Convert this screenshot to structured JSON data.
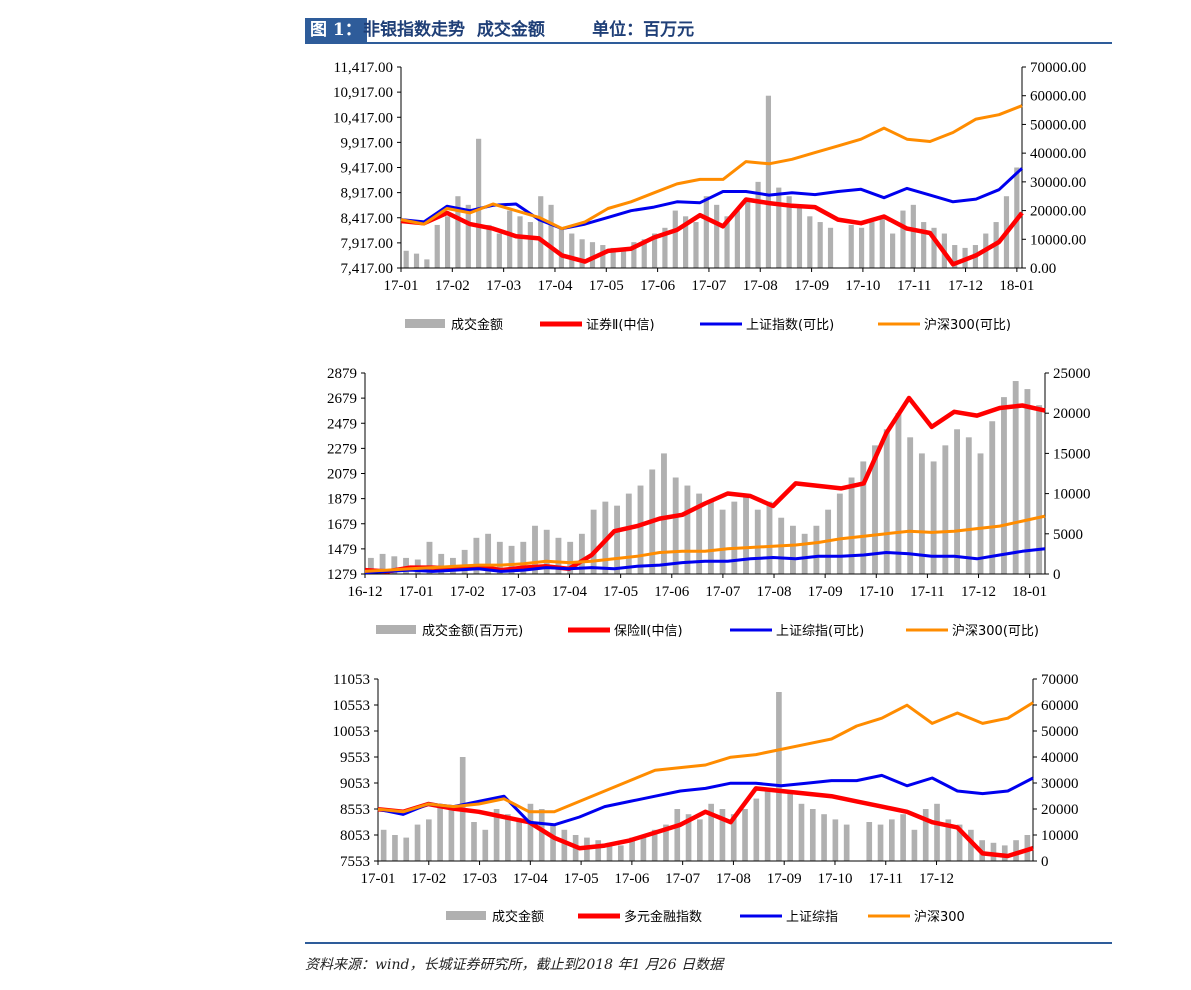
{
  "header": {
    "label": "图 1：",
    "title": "非银指数走势  成交金额        单位：百万元"
  },
  "footer": "资料来源：wind，长城证券研究所，截止到2018 年1 月26 日数据",
  "colors": {
    "bar": "#b0b0b0",
    "red": "#ff0000",
    "blue": "#0000ee",
    "orange": "#ff8c00"
  },
  "chart_data": [
    {
      "type": "line+bar",
      "title": "证券Ⅱ",
      "left_ylim": [
        7417,
        11917
      ],
      "left_ticks": [
        "7,417.00",
        "7,917.00",
        "8,417.00",
        "8,917.00",
        "9,417.00",
        "9,917.00",
        "10,417.00",
        "10,917.00",
        "11,417.00"
      ],
      "right_ylim": [
        0,
        70000
      ],
      "right_ticks": [
        "0.00",
        "10000.00",
        "20000.00",
        "30000.00",
        "40000.00",
        "50000.00",
        "60000.00",
        "70000.00"
      ],
      "x_ticks": [
        "17-01",
        "17-02",
        "17-03",
        "17-04",
        "17-05",
        "17-06",
        "17-07",
        "17-08",
        "17-09",
        "17-10",
        "17-11",
        "17-12",
        "18-01"
      ],
      "x_end": 12.1,
      "legend": [
        "成交金额",
        "证券Ⅱ(中信)",
        "上证指数(可比)",
        "沪深300(可比)"
      ],
      "bars": [
        6000,
        5000,
        3000,
        15000,
        18000,
        25000,
        22000,
        45000,
        15000,
        12000,
        20000,
        18000,
        16000,
        25000,
        22000,
        14000,
        12000,
        10000,
        9000,
        8000,
        7000,
        6000,
        9000,
        10000,
        12000,
        14000,
        20000,
        18000,
        16000,
        25000,
        22000,
        18000,
        20000,
        24000,
        30000,
        60000,
        28000,
        25000,
        22000,
        18000,
        16000,
        14000,
        0,
        15000,
        14000,
        16000,
        18000,
        12000,
        20000,
        22000,
        16000,
        14000,
        12000,
        8000,
        7000,
        8000,
        12000,
        16000,
        25000,
        35000
      ],
      "series": [
        {
          "name": "证券Ⅱ(中信)",
          "values": [
            8470,
            8420,
            8650,
            8400,
            8300,
            8130,
            8080,
            7700,
            7560,
            7800,
            7850,
            8100,
            8270,
            8600,
            8350,
            8950,
            8870,
            8810,
            8780,
            8500,
            8420,
            8570,
            8300,
            8200,
            7500,
            7700,
            8000,
            8650
          ]
        },
        {
          "name": "上证指数(可比)",
          "values": [
            8500,
            8450,
            8800,
            8700,
            8820,
            8850,
            8500,
            8300,
            8400,
            8550,
            8700,
            8780,
            8900,
            8880,
            9130,
            9130,
            9050,
            9100,
            9060,
            9130,
            9180,
            8990,
            9200,
            9050,
            8900,
            8960,
            9170,
            9650
          ]
        },
        {
          "name": "沪深300(可比)",
          "values": [
            8500,
            8400,
            8750,
            8650,
            8850,
            8700,
            8550,
            8300,
            8450,
            8750,
            8900,
            9100,
            9300,
            9400,
            9400,
            9800,
            9750,
            9850,
            10000,
            10150,
            10300,
            10550,
            10300,
            10250,
            10450,
            10750,
            10850,
            11050
          ]
        }
      ]
    },
    {
      "type": "line+bar",
      "title": "保险Ⅱ",
      "left_ylim": [
        1279,
        2879
      ],
      "left_ticks": [
        "1279",
        "1479",
        "1679",
        "1879",
        "2079",
        "2279",
        "2479",
        "2679",
        "2879"
      ],
      "right_ylim": [
        0,
        25000
      ],
      "right_ticks": [
        "0",
        "5000",
        "10000",
        "15000",
        "20000",
        "25000"
      ],
      "x_ticks": [
        "16-12",
        "17-01",
        "17-02",
        "17-03",
        "17-04",
        "17-05",
        "17-06",
        "17-07",
        "17-08",
        "17-09",
        "17-10",
        "17-11",
        "17-12",
        "18-01"
      ],
      "x_end": 13.3,
      "legend": [
        "成交金额(百万元)",
        "保险Ⅱ(中信)",
        "上证综指(可比)",
        "沪深300(可比)"
      ],
      "bars": [
        2000,
        2500,
        2200,
        2000,
        1800,
        4000,
        2500,
        2000,
        3000,
        4500,
        5000,
        4000,
        3500,
        4000,
        6000,
        5500,
        4500,
        4000,
        5000,
        8000,
        9000,
        8500,
        10000,
        11000,
        13000,
        15000,
        12000,
        11000,
        10000,
        9000,
        8000,
        9000,
        10000,
        8000,
        9000,
        7000,
        6000,
        5000,
        6000,
        8000,
        10000,
        12000,
        14000,
        16000,
        18000,
        20000,
        17000,
        15000,
        14000,
        16000,
        18000,
        17000,
        15000,
        19000,
        22000,
        24000,
        23000,
        21000
      ],
      "series": [
        {
          "name": "保险Ⅱ(中信)",
          "values": [
            1310,
            1300,
            1330,
            1330,
            1320,
            1340,
            1310,
            1330,
            1340,
            1320,
            1430,
            1620,
            1660,
            1720,
            1750,
            1840,
            1920,
            1900,
            1820,
            2000,
            1980,
            1960,
            2000,
            2400,
            2680,
            2450,
            2570,
            2540,
            2600,
            2620,
            2580
          ]
        },
        {
          "name": "上证综指(可比)",
          "values": [
            1290,
            1300,
            1310,
            1300,
            1310,
            1320,
            1300,
            1310,
            1330,
            1320,
            1330,
            1320,
            1340,
            1350,
            1370,
            1380,
            1380,
            1400,
            1410,
            1400,
            1420,
            1420,
            1430,
            1450,
            1440,
            1420,
            1420,
            1400,
            1430,
            1460,
            1480
          ]
        },
        {
          "name": "沪深300(可比)",
          "values": [
            1300,
            1310,
            1320,
            1330,
            1340,
            1350,
            1350,
            1360,
            1380,
            1370,
            1380,
            1400,
            1420,
            1450,
            1460,
            1460,
            1480,
            1490,
            1500,
            1510,
            1530,
            1560,
            1580,
            1600,
            1620,
            1610,
            1620,
            1640,
            1660,
            1700,
            1740
          ]
        }
      ]
    },
    {
      "type": "line+bar",
      "title": "多元金融指数",
      "left_ylim": [
        7553,
        11053
      ],
      "left_ticks": [
        "7553",
        "8053",
        "8553",
        "9053",
        "9553",
        "10053",
        "10553",
        "11053"
      ],
      "right_ylim": [
        0,
        70000
      ],
      "right_ticks": [
        "0",
        "10000",
        "20000",
        "30000",
        "40000",
        "50000",
        "60000",
        "70000"
      ],
      "x_ticks": [
        "17-01",
        "17-02",
        "17-03",
        "17-04",
        "17-05",
        "17-06",
        "17-07",
        "17-08",
        "17-09",
        "17-10",
        "17-11",
        "17-12"
      ],
      "x_end": 12.9,
      "legend": [
        "成交金额",
        "多元金融指数",
        "上证综指",
        "沪深300"
      ],
      "bars": [
        12000,
        10000,
        9000,
        14000,
        16000,
        22000,
        20000,
        40000,
        15000,
        12000,
        20000,
        18000,
        16000,
        22000,
        20000,
        14000,
        12000,
        10000,
        9000,
        8000,
        7000,
        6000,
        9000,
        10000,
        12000,
        14000,
        20000,
        18000,
        16000,
        22000,
        20000,
        18000,
        20000,
        24000,
        28000,
        65000,
        26000,
        22000,
        20000,
        18000,
        16000,
        14000,
        0,
        15000,
        14000,
        16000,
        18000,
        12000,
        20000,
        22000,
        16000,
        14000,
        12000,
        8000,
        7000,
        6000,
        8000,
        10000
      ],
      "series": [
        {
          "name": "多元金融指数",
          "values": [
            8550,
            8500,
            8650,
            8560,
            8500,
            8400,
            8300,
            8000,
            7800,
            7850,
            7950,
            8100,
            8250,
            8500,
            8300,
            8950,
            8900,
            8850,
            8800,
            8700,
            8600,
            8500,
            8300,
            8200,
            7700,
            7650,
            7800
          ]
        },
        {
          "name": "上证综指",
          "values": [
            8550,
            8450,
            8650,
            8600,
            8700,
            8800,
            8300,
            8250,
            8400,
            8600,
            8700,
            8800,
            8900,
            8950,
            9050,
            9050,
            9000,
            9050,
            9100,
            9100,
            9200,
            9000,
            9150,
            8900,
            8850,
            8900,
            9150
          ]
        },
        {
          "name": "沪深300",
          "values": [
            8550,
            8500,
            8650,
            8600,
            8650,
            8750,
            8500,
            8500,
            8700,
            8900,
            9100,
            9300,
            9350,
            9400,
            9550,
            9600,
            9700,
            9800,
            9900,
            10150,
            10300,
            10550,
            10200,
            10400,
            10200,
            10300,
            10600
          ]
        }
      ]
    }
  ]
}
